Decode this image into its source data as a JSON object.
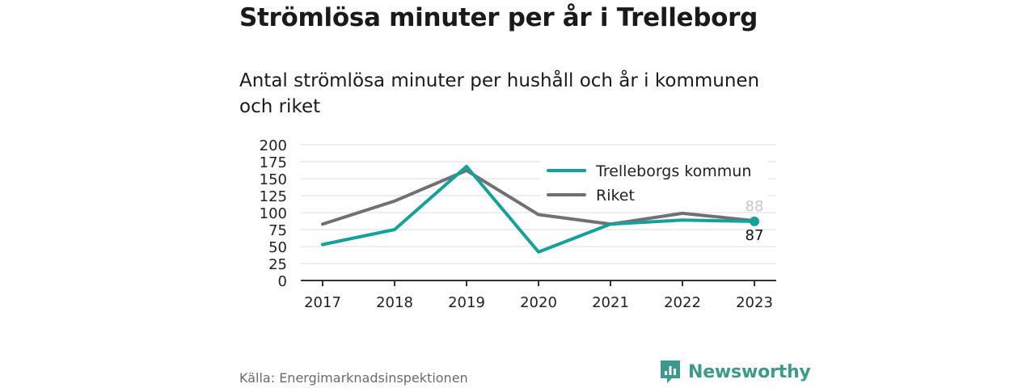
{
  "title": "Strömlösa minuter per år i Trelleborg",
  "subtitle": "Antal strömlösa minuter per hushåll och år i kommunen och riket",
  "source": "Källa: Energimarknadsinspektionen",
  "brand": {
    "name": "Newsworthy",
    "icon": "newsworthy-logo-icon",
    "color": "#3c9a8a"
  },
  "chart_data": {
    "type": "line",
    "categories": [
      "2017",
      "2018",
      "2019",
      "2020",
      "2021",
      "2022",
      "2023"
    ],
    "series": [
      {
        "name": "Trelleborgs kommun",
        "color": "#16a198",
        "values": [
          53,
          75,
          168,
          42,
          83,
          89,
          87
        ],
        "end_label": "87"
      },
      {
        "name": "Riket",
        "color": "#717075",
        "values": [
          83,
          117,
          162,
          97,
          83,
          99,
          88
        ],
        "end_label": "88"
      }
    ],
    "ylim": [
      0,
      200
    ],
    "yticks": [
      "0",
      "25",
      "50",
      "75",
      "100",
      "125",
      "150",
      "175",
      "200"
    ],
    "grid": true,
    "legend": "top-right"
  }
}
